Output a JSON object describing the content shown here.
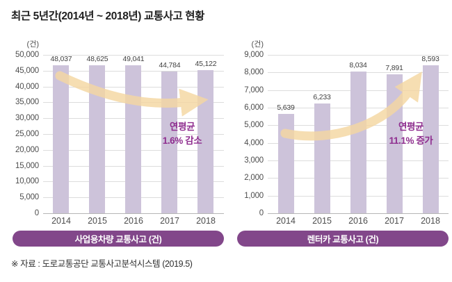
{
  "title": "최근 5년간(2014년 ~ 2018년) 교통사고 현황",
  "footer": "※ 자료 : 도로교통공단 교통사고분석시스템 (2019.5)",
  "colors": {
    "bar": "#cdc3da",
    "gridline": "#dcdcdc",
    "baseline": "#b5b5b5",
    "pill_background": "#82478a",
    "pill_text": "#ffffff",
    "annotation_text": "#8f2e8f",
    "trend_arrow": "#f5d7a2",
    "title_text": "#1f1f1f",
    "tick_text": "#4d4d4d"
  },
  "chart_data": [
    {
      "type": "bar",
      "pill_label": "사업용차량 교통사고 (건)",
      "unit": "(건)",
      "categories": [
        "2014",
        "2015",
        "2016",
        "2017",
        "2018"
      ],
      "values": [
        48037,
        48625,
        49041,
        44784,
        45122
      ],
      "value_labels": [
        "48,037",
        "48,625",
        "49,041",
        "44,784",
        "45,122"
      ],
      "ylim": [
        0,
        50000
      ],
      "ytick_step": 5000,
      "grid": true,
      "trend": "down",
      "annotation_line1": "연평균",
      "annotation_line2": "1.6% 감소"
    },
    {
      "type": "bar",
      "pill_label": "렌터카 교통사고 (건)",
      "unit": "(건)",
      "categories": [
        "2014",
        "2015",
        "2016",
        "2017",
        "2018"
      ],
      "values": [
        5639,
        6233,
        8034,
        7891,
        8593
      ],
      "value_labels": [
        "5,639",
        "6,233",
        "8,034",
        "7,891",
        "8,593"
      ],
      "ylim": [
        0,
        9000
      ],
      "ytick_step": 1000,
      "grid": true,
      "trend": "up",
      "annotation_line1": "연평균",
      "annotation_line2": "11.1% 증가"
    }
  ]
}
